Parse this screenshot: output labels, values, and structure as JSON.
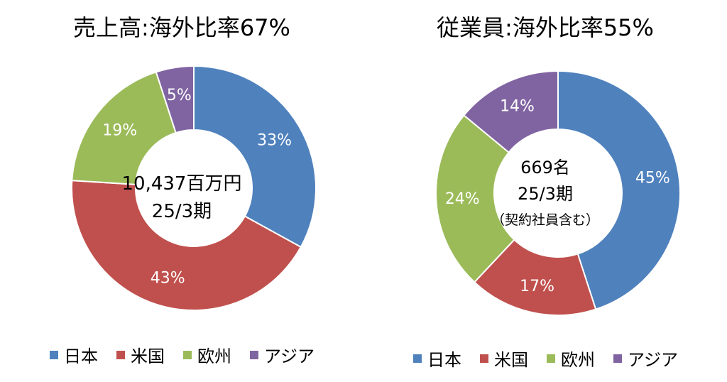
{
  "colors": {
    "japan": "#4F81BD",
    "usa": "#C0504D",
    "europe": "#9BBB59",
    "asia": "#8064A2",
    "border": "#ffffff",
    "label": "#ffffff"
  },
  "chart_data": [
    {
      "type": "pie",
      "title": "売上高:海外比率67%",
      "center_lines": [
        "10,437百万円",
        "25/3期"
      ],
      "center_note": "",
      "categories": [
        "日本",
        "米国",
        "欧州",
        "アジア"
      ],
      "values": [
        33,
        43,
        19,
        5
      ],
      "labels": [
        "33%",
        "43%",
        "19%",
        "5%"
      ],
      "legend_position": "bottom"
    },
    {
      "type": "pie",
      "title": "従業員:海外比率55%",
      "center_lines": [
        "669名",
        "25/3期"
      ],
      "center_note": "（契約社員含む）",
      "categories": [
        "日本",
        "米国",
        "欧州",
        "アジア"
      ],
      "values": [
        45,
        17,
        24,
        14
      ],
      "labels": [
        "45%",
        "17%",
        "24%",
        "14%"
      ],
      "legend_position": "bottom"
    }
  ]
}
